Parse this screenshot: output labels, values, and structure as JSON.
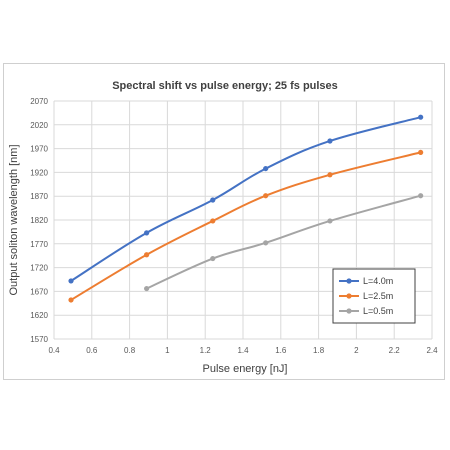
{
  "chart_data": {
    "type": "line",
    "title": "Spectral shift vs pulse energy; 25 fs pulses",
    "xlabel": "Pulse energy [nJ]",
    "ylabel": "Output soliton wavelength [nm]",
    "xlim": [
      0.4,
      2.4
    ],
    "ylim": [
      1570,
      2070
    ],
    "xticks": [
      0.4,
      0.6,
      0.8,
      1,
      1.2,
      1.4,
      1.6,
      1.8,
      2,
      2.2,
      2.4
    ],
    "yticks": [
      1570,
      1620,
      1670,
      1720,
      1770,
      1820,
      1870,
      1920,
      1970,
      2020,
      2070
    ],
    "grid": true,
    "legend_position": "lower-right",
    "series": [
      {
        "name": "L=4.0m",
        "color": "#4472c4",
        "x": [
          0.49,
          0.89,
          1.24,
          1.52,
          1.86,
          2.34
        ],
        "y": [
          1692,
          1793,
          1862,
          1928,
          1986,
          2036
        ]
      },
      {
        "name": "L=2.5m",
        "color": "#ed7d31",
        "x": [
          0.49,
          0.89,
          1.24,
          1.52,
          1.86,
          2.34
        ],
        "y": [
          1652,
          1747,
          1818,
          1871,
          1915,
          1962
        ]
      },
      {
        "name": "L=0.5m",
        "color": "#a5a5a5",
        "x": [
          0.89,
          1.24,
          1.52,
          1.86,
          2.34
        ],
        "y": [
          1676,
          1739,
          1772,
          1818,
          1871
        ]
      }
    ]
  }
}
